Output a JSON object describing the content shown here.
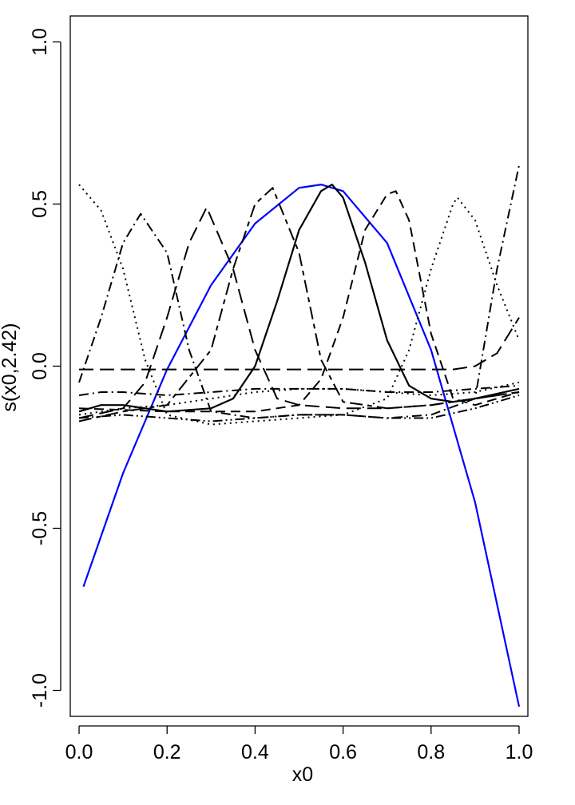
{
  "chart_data": {
    "type": "line",
    "title": "",
    "xlabel": "x0",
    "ylabel": "s(x0,2.42)",
    "xlim": [
      -0.02,
      1.02
    ],
    "ylim": [
      -1.08,
      1.08
    ],
    "x_ticks": [
      0.0,
      0.2,
      0.4,
      0.6,
      0.8,
      1.0
    ],
    "x_tick_labels": [
      "0.0",
      "0.2",
      "0.4",
      "0.6",
      "0.8",
      "1.0"
    ],
    "y_ticks": [
      -1.0,
      -0.5,
      0.0,
      0.5,
      1.0
    ],
    "y_tick_labels": [
      "-1.0",
      "-0.5",
      "0.0",
      "0.5",
      "1.0"
    ],
    "grid": false,
    "legend": "none",
    "series": [
      {
        "color": "#0000ff",
        "dash": "solid",
        "width": 2.2,
        "x": [
          0.01,
          0.1,
          0.2,
          0.3,
          0.4,
          0.5,
          0.55,
          0.6,
          0.7,
          0.8,
          0.9,
          1.0
        ],
        "y": [
          -0.68,
          -0.33,
          -0.01,
          0.25,
          0.44,
          0.55,
          0.56,
          0.54,
          0.38,
          0.05,
          -0.42,
          -1.05
        ]
      },
      {
        "color": "#000000",
        "dash": "solid",
        "width": 2.2,
        "x": [
          0.0,
          0.05,
          0.1,
          0.2,
          0.3,
          0.35,
          0.4,
          0.45,
          0.5,
          0.55,
          0.575,
          0.6,
          0.65,
          0.7,
          0.75,
          0.8,
          0.85,
          0.9,
          1.0
        ],
        "y": [
          -0.14,
          -0.12,
          -0.12,
          -0.14,
          -0.13,
          -0.1,
          0.0,
          0.2,
          0.42,
          0.54,
          0.56,
          0.52,
          0.32,
          0.08,
          -0.06,
          -0.1,
          -0.11,
          -0.1,
          -0.07
        ]
      },
      {
        "color": "#000000",
        "dash": "dot",
        "width": 2,
        "x": [
          0.0,
          0.05,
          0.1,
          0.15,
          0.2,
          0.3,
          0.4,
          0.5,
          0.6,
          0.7,
          0.75,
          0.8,
          0.85,
          0.86,
          0.9,
          0.95,
          1.0
        ],
        "y": [
          0.56,
          0.48,
          0.3,
          0.02,
          -0.15,
          -0.18,
          -0.17,
          -0.16,
          -0.15,
          -0.1,
          0.05,
          0.3,
          0.5,
          0.52,
          0.45,
          0.25,
          0.08
        ]
      },
      {
        "color": "#000000",
        "dash": "dashdot",
        "width": 2,
        "x": [
          0.0,
          0.05,
          0.1,
          0.14,
          0.2,
          0.25,
          0.3,
          0.4,
          0.5,
          0.6,
          0.7,
          0.8,
          0.9,
          0.95,
          1.0
        ],
        "y": [
          -0.05,
          0.15,
          0.38,
          0.47,
          0.35,
          0.05,
          -0.14,
          -0.16,
          -0.15,
          -0.15,
          -0.16,
          -0.15,
          -0.1,
          0.3,
          0.62
        ]
      },
      {
        "color": "#000000",
        "dash": "longdash",
        "width": 2,
        "x": [
          0.0,
          0.1,
          0.15,
          0.2,
          0.25,
          0.29,
          0.35,
          0.4,
          0.45,
          0.5,
          0.6,
          0.7,
          0.8,
          0.9,
          1.0
        ],
        "y": [
          -0.16,
          -0.13,
          -0.05,
          0.15,
          0.38,
          0.49,
          0.3,
          0.05,
          -0.1,
          -0.12,
          -0.13,
          -0.13,
          -0.12,
          -0.1,
          -0.08
        ]
      },
      {
        "color": "#000000",
        "dash": "twodash",
        "width": 2,
        "x": [
          0.0,
          0.1,
          0.2,
          0.3,
          0.35,
          0.4,
          0.44,
          0.5,
          0.55,
          0.6,
          0.7,
          0.8,
          0.9,
          1.0
        ],
        "y": [
          -0.17,
          -0.14,
          -0.12,
          0.05,
          0.3,
          0.5,
          0.55,
          0.35,
          0.02,
          -0.11,
          -0.13,
          -0.12,
          -0.1,
          -0.08
        ]
      },
      {
        "color": "#000000",
        "dash": "dash",
        "width": 2,
        "x": [
          0.0,
          0.2,
          0.4,
          0.5,
          0.55,
          0.6,
          0.65,
          0.7,
          0.72,
          0.75,
          0.8,
          0.85,
          0.9,
          1.0
        ],
        "y": [
          -0.13,
          -0.14,
          -0.14,
          -0.12,
          -0.04,
          0.15,
          0.42,
          0.53,
          0.54,
          0.45,
          0.1,
          -0.1,
          -0.12,
          -0.08
        ]
      },
      {
        "color": "#000000",
        "dash": "longdash",
        "width": 2,
        "x": [
          0.0,
          0.2,
          0.4,
          0.6,
          0.8,
          0.85,
          0.9,
          0.95,
          1.0
        ],
        "y": [
          -0.01,
          -0.01,
          -0.01,
          -0.01,
          -0.01,
          -0.01,
          0.0,
          0.04,
          0.15
        ]
      },
      {
        "color": "#000000",
        "dash": "dashdot",
        "width": 2,
        "x": [
          0.0,
          0.05,
          0.1,
          0.2,
          0.3,
          0.4,
          0.5,
          0.6,
          0.7,
          0.8,
          0.9,
          1.0
        ],
        "y": [
          -0.09,
          -0.08,
          -0.08,
          -0.09,
          -0.08,
          -0.07,
          -0.07,
          -0.07,
          -0.08,
          -0.08,
          -0.07,
          -0.06
        ]
      },
      {
        "color": "#000000",
        "dash": "dot",
        "width": 2,
        "x": [
          0.0,
          0.1,
          0.2,
          0.3,
          0.4,
          0.5,
          0.6,
          0.7,
          0.8,
          0.9,
          1.0
        ],
        "y": [
          -0.15,
          -0.13,
          -0.12,
          -0.1,
          -0.08,
          -0.07,
          -0.07,
          -0.08,
          -0.09,
          -0.08,
          -0.05
        ]
      },
      {
        "color": "#000000",
        "dash": "dashdotdot",
        "width": 2,
        "x": [
          0.0,
          0.1,
          0.2,
          0.3,
          0.4,
          0.5,
          0.6,
          0.7,
          0.8,
          0.9,
          1.0
        ],
        "y": [
          -0.16,
          -0.15,
          -0.16,
          -0.17,
          -0.16,
          -0.15,
          -0.15,
          -0.16,
          -0.16,
          -0.13,
          -0.09
        ]
      }
    ]
  }
}
